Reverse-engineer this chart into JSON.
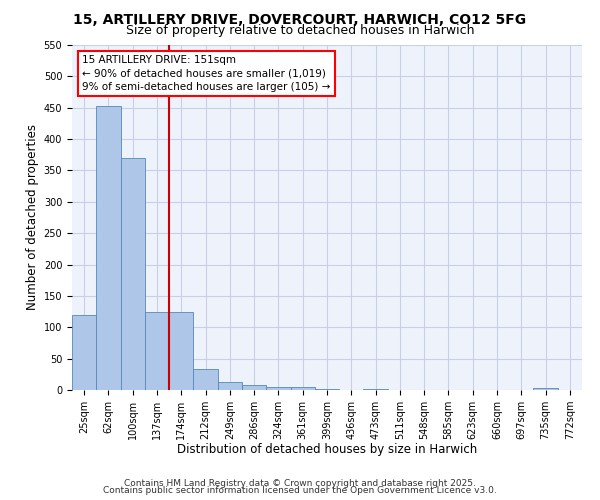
{
  "title1": "15, ARTILLERY DRIVE, DOVERCOURT, HARWICH, CO12 5FG",
  "title2": "Size of property relative to detached houses in Harwich",
  "xlabel": "Distribution of detached houses by size in Harwich",
  "ylabel": "Number of detached properties",
  "categories": [
    "25sqm",
    "62sqm",
    "100sqm",
    "137sqm",
    "174sqm",
    "212sqm",
    "249sqm",
    "286sqm",
    "324sqm",
    "361sqm",
    "399sqm",
    "436sqm",
    "473sqm",
    "511sqm",
    "548sqm",
    "585sqm",
    "623sqm",
    "660sqm",
    "697sqm",
    "735sqm",
    "772sqm"
  ],
  "values": [
    120,
    452,
    370,
    125,
    125,
    33,
    13,
    8,
    5,
    5,
    1,
    0,
    1,
    0,
    0,
    0,
    0,
    0,
    0,
    3,
    0
  ],
  "bar_color": "#aec6e8",
  "bar_edgecolor": "#5588bb",
  "red_line_x": 3.5,
  "annotation_text": "15 ARTILLERY DRIVE: 151sqm\n← 90% of detached houses are smaller (1,019)\n9% of semi-detached houses are larger (105) →",
  "annotation_box_color": "white",
  "annotation_box_edgecolor": "red",
  "red_line_color": "#cc0000",
  "ylim": [
    0,
    550
  ],
  "yticks": [
    0,
    50,
    100,
    150,
    200,
    250,
    300,
    350,
    400,
    450,
    500,
    550
  ],
  "footer1": "Contains HM Land Registry data © Crown copyright and database right 2025.",
  "footer2": "Contains public sector information licensed under the Open Government Licence v3.0.",
  "bg_color": "#eef2fb",
  "grid_color": "#c8d0e8",
  "title_fontsize": 10,
  "subtitle_fontsize": 9,
  "axis_label_fontsize": 8.5,
  "tick_fontsize": 7,
  "annotation_fontsize": 7.5,
  "footer_fontsize": 6.5
}
